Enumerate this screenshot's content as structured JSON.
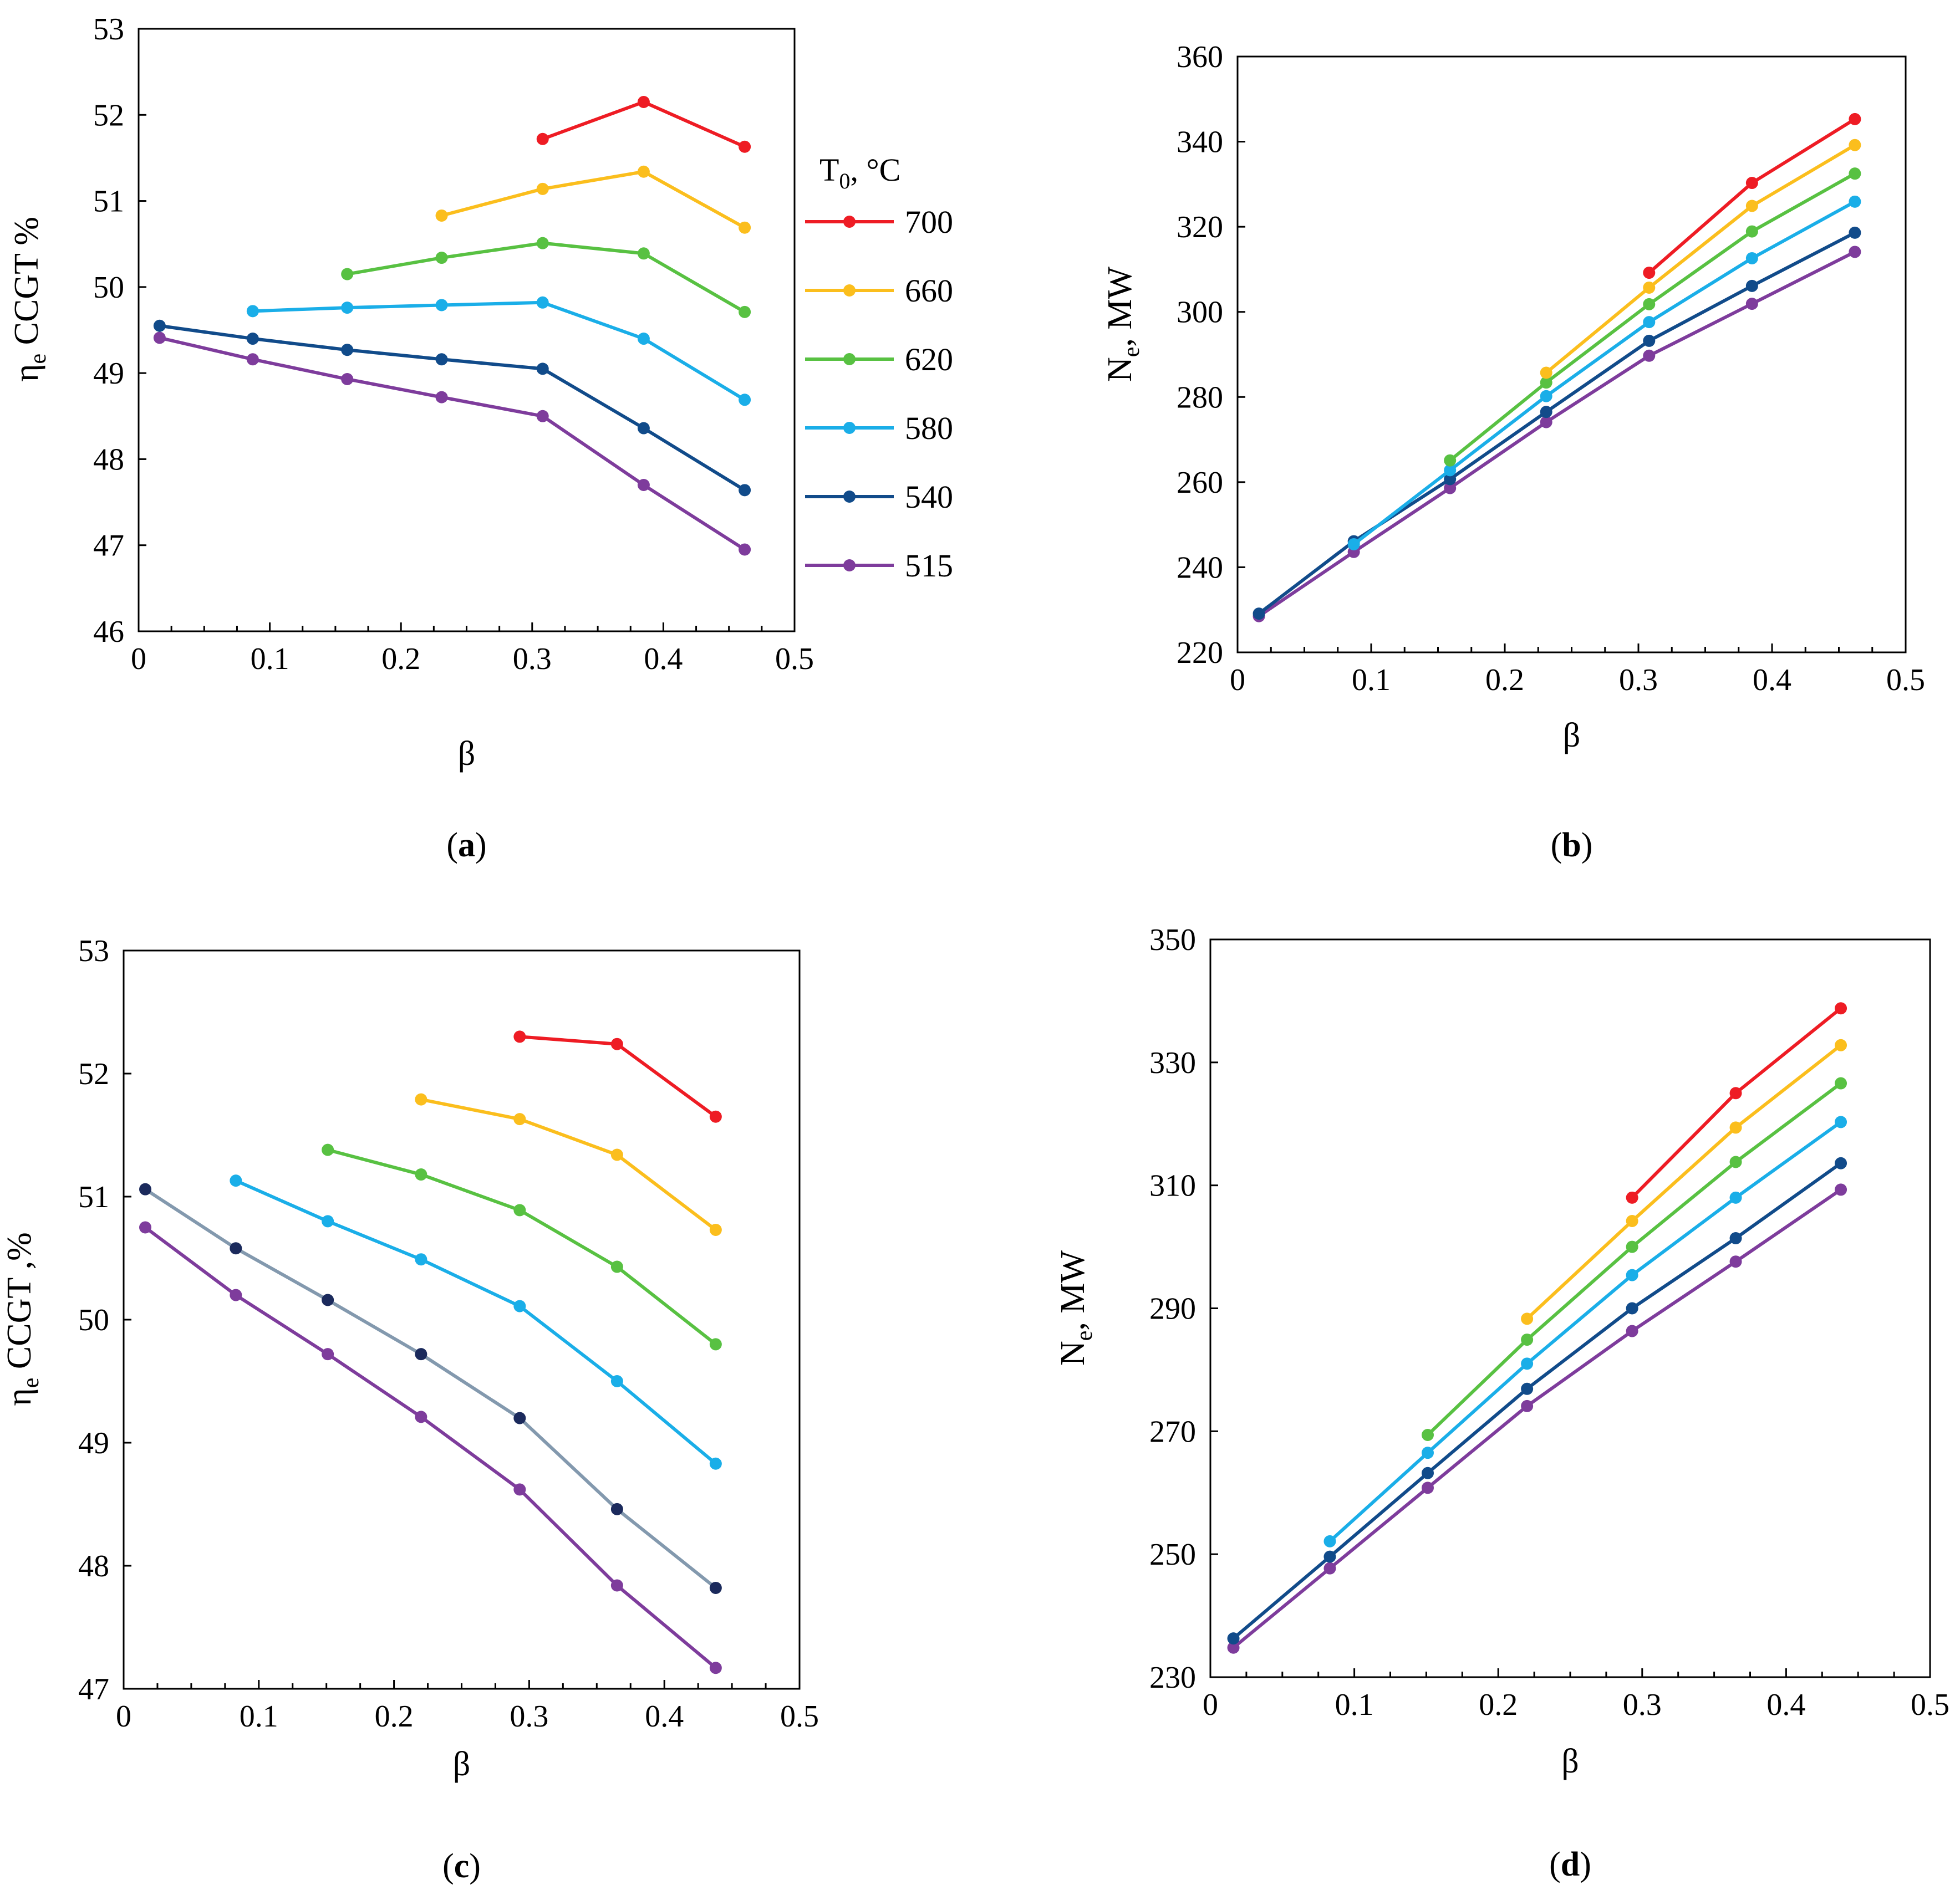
{
  "colors": {
    "700": "#EE1C24",
    "660": "#FBBE1D",
    "620": "#58C142",
    "580": "#1AAEE8",
    "540": "#114B8A",
    "515": "#7E3C9C",
    "540c_line": "#8399AE",
    "540c_marker": "#1B2A5C"
  },
  "legend": {
    "title_main": "T",
    "title_sub": "0",
    "title_rest": ", °C",
    "entries": [
      "700",
      "660",
      "620",
      "580",
      "540",
      "515"
    ]
  },
  "chart_data": [
    {
      "id": "a",
      "type": "line",
      "panel_label": "a",
      "xlabel": "β",
      "ylabel_main": "η",
      "ylabel_sub": "e",
      "ylabel_rest": " CCGT %",
      "xlim": [
        0,
        0.5
      ],
      "ylim": [
        46,
        53
      ],
      "xticks": [
        0,
        0.1,
        0.2,
        0.3,
        0.4,
        0.5
      ],
      "xtick_labels": [
        "0",
        "0.1",
        "0.2",
        "0.3",
        "0.4",
        "0.5"
      ],
      "yticks": [
        46,
        47,
        48,
        49,
        50,
        51,
        52,
        53
      ],
      "ytick_labels": [
        "46",
        "47",
        "48",
        "49",
        "50",
        "51",
        "52",
        "53"
      ],
      "series": [
        {
          "name": "700",
          "x": [
            0.308,
            0.385,
            0.462
          ],
          "y": [
            51.72,
            52.15,
            51.63
          ]
        },
        {
          "name": "660",
          "x": [
            0.231,
            0.308,
            0.385,
            0.462
          ],
          "y": [
            50.83,
            51.14,
            51.34,
            50.69
          ]
        },
        {
          "name": "620",
          "x": [
            0.159,
            0.231,
            0.308,
            0.385,
            0.462
          ],
          "y": [
            50.15,
            50.34,
            50.51,
            50.39,
            49.71
          ]
        },
        {
          "name": "580",
          "x": [
            0.087,
            0.159,
            0.231,
            0.308,
            0.385,
            0.462
          ],
          "y": [
            49.72,
            49.76,
            49.79,
            49.82,
            49.4,
            48.69
          ]
        },
        {
          "name": "540",
          "x": [
            0.016,
            0.087,
            0.159,
            0.231,
            0.308,
            0.385,
            0.462
          ],
          "y": [
            49.55,
            49.4,
            49.27,
            49.16,
            49.05,
            48.36,
            47.64
          ]
        },
        {
          "name": "515",
          "x": [
            0.016,
            0.087,
            0.159,
            0.231,
            0.308,
            0.385,
            0.462
          ],
          "y": [
            49.41,
            49.16,
            48.93,
            48.72,
            48.5,
            47.7,
            46.95
          ]
        }
      ]
    },
    {
      "id": "b",
      "type": "line",
      "panel_label": "b",
      "xlabel": "β",
      "ylabel_main": "N",
      "ylabel_sub": "e",
      "ylabel_rest": ", MW",
      "xlim": [
        0,
        0.5
      ],
      "ylim": [
        220,
        360
      ],
      "xticks": [
        0,
        0.1,
        0.2,
        0.3,
        0.4,
        0.5
      ],
      "xtick_labels": [
        "0",
        "0.1",
        "0.2",
        "0.3",
        "0.4",
        "0.5"
      ],
      "yticks": [
        220,
        240,
        260,
        280,
        300,
        320,
        340,
        360
      ],
      "ytick_labels": [
        "220",
        "240",
        "260",
        "280",
        "300",
        "320",
        "340",
        "360"
      ],
      "series": [
        {
          "name": "700",
          "x": [
            0.308,
            0.385,
            0.462
          ],
          "y": [
            309.2,
            330.3,
            345.3
          ]
        },
        {
          "name": "660",
          "x": [
            0.231,
            0.308,
            0.385,
            0.462
          ],
          "y": [
            285.7,
            305.7,
            324.9,
            339.2
          ]
        },
        {
          "name": "620",
          "x": [
            0.159,
            0.231,
            0.308,
            0.385,
            0.462
          ],
          "y": [
            265.1,
            283.4,
            301.8,
            318.9,
            332.5
          ]
        },
        {
          "name": "580",
          "x": [
            0.087,
            0.159,
            0.231,
            0.308,
            0.385,
            0.462
          ],
          "y": [
            245.4,
            262.8,
            280.2,
            297.6,
            312.6,
            325.9
          ]
        },
        {
          "name": "540",
          "x": [
            0.016,
            0.087,
            0.159,
            0.231,
            0.308,
            0.385,
            0.462
          ],
          "y": [
            229.1,
            246.1,
            260.7,
            276.5,
            293.2,
            306.1,
            318.6
          ]
        },
        {
          "name": "515",
          "x": [
            0.016,
            0.087,
            0.159,
            0.231,
            0.308,
            0.385,
            0.462
          ],
          "y": [
            228.5,
            243.6,
            258.6,
            274.1,
            289.7,
            301.9,
            314.1
          ]
        }
      ]
    },
    {
      "id": "c",
      "type": "line",
      "panel_label": "c",
      "xlabel": "β",
      "ylabel_main": "η",
      "ylabel_sub": "e",
      "ylabel_rest": " CCGT ,%",
      "xlim": [
        0,
        0.5
      ],
      "ylim": [
        47,
        53
      ],
      "xticks": [
        0,
        0.1,
        0.2,
        0.3,
        0.4,
        0.5
      ],
      "xtick_labels": [
        "0",
        "0.1",
        "0.2",
        "0.3",
        "0.4",
        "0.5"
      ],
      "yticks": [
        47,
        48,
        49,
        50,
        51,
        52,
        53
      ],
      "ytick_labels": [
        "47",
        "48",
        "49",
        "50",
        "51",
        "52",
        "53"
      ],
      "series": [
        {
          "name": "700",
          "x": [
            0.293,
            0.365,
            0.438
          ],
          "y": [
            52.3,
            52.24,
            51.65
          ]
        },
        {
          "name": "660",
          "x": [
            0.22,
            0.293,
            0.365,
            0.438
          ],
          "y": [
            51.79,
            51.63,
            51.34,
            50.73
          ]
        },
        {
          "name": "620",
          "x": [
            0.151,
            0.22,
            0.293,
            0.365,
            0.438
          ],
          "y": [
            51.38,
            51.18,
            50.89,
            50.43,
            49.8
          ]
        },
        {
          "name": "580",
          "x": [
            0.083,
            0.151,
            0.22,
            0.293,
            0.365,
            0.438
          ],
          "y": [
            51.13,
            50.8,
            50.49,
            50.11,
            49.5,
            48.83
          ]
        },
        {
          "name": "540",
          "x": [
            0.016,
            0.083,
            0.151,
            0.22,
            0.293,
            0.365,
            0.438
          ],
          "y": [
            51.06,
            50.58,
            50.16,
            49.72,
            49.2,
            48.46,
            47.82
          ]
        },
        {
          "name": "515",
          "x": [
            0.016,
            0.083,
            0.151,
            0.22,
            0.293,
            0.365,
            0.438
          ],
          "y": [
            50.75,
            50.2,
            49.72,
            49.21,
            48.62,
            47.84,
            47.17
          ]
        }
      ]
    },
    {
      "id": "d",
      "type": "line",
      "panel_label": "d",
      "xlabel": "β",
      "ylabel_main": "N",
      "ylabel_sub": "e",
      "ylabel_rest": ", MW",
      "xlim": [
        0,
        0.5
      ],
      "ylim": [
        230,
        350
      ],
      "xticks": [
        0,
        0.1,
        0.2,
        0.3,
        0.4,
        0.5
      ],
      "xtick_labels": [
        "0",
        "0.1",
        "0.2",
        "0.3",
        "0.4",
        "0.5"
      ],
      "yticks": [
        230,
        250,
        270,
        290,
        310,
        330,
        350
      ],
      "ytick_labels": [
        "230",
        "250",
        "270",
        "290",
        "310",
        "330",
        "350"
      ],
      "series": [
        {
          "name": "700",
          "x": [
            0.293,
            0.365,
            0.438
          ],
          "y": [
            308.0,
            325.0,
            338.8
          ]
        },
        {
          "name": "660",
          "x": [
            0.22,
            0.293,
            0.365,
            0.438
          ],
          "y": [
            288.3,
            304.2,
            319.4,
            332.8
          ]
        },
        {
          "name": "620",
          "x": [
            0.151,
            0.22,
            0.293,
            0.365,
            0.438
          ],
          "y": [
            269.4,
            284.9,
            300.0,
            313.8,
            326.6
          ]
        },
        {
          "name": "580",
          "x": [
            0.083,
            0.151,
            0.22,
            0.293,
            0.365,
            0.438
          ],
          "y": [
            252.1,
            266.5,
            281.0,
            295.4,
            308.0,
            320.3
          ]
        },
        {
          "name": "540",
          "x": [
            0.016,
            0.083,
            0.151,
            0.22,
            0.293,
            0.365,
            0.438
          ],
          "y": [
            236.3,
            249.6,
            263.2,
            276.9,
            290.0,
            301.4,
            313.6
          ]
        },
        {
          "name": "515",
          "x": [
            0.016,
            0.083,
            0.151,
            0.22,
            0.293,
            0.365,
            0.438
          ],
          "y": [
            234.8,
            247.7,
            260.8,
            274.1,
            286.3,
            297.6,
            309.3
          ]
        }
      ]
    }
  ]
}
